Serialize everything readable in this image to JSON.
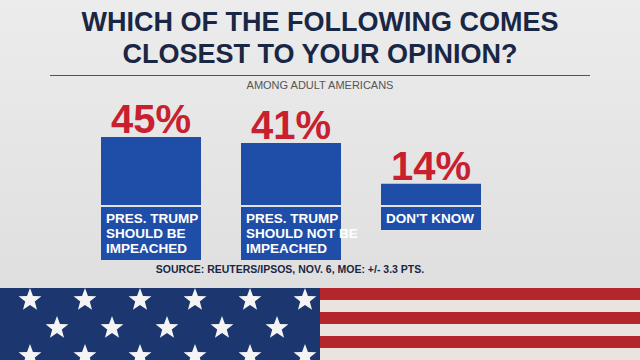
{
  "chart_data": {
    "type": "bar",
    "title": "WHICH OF THE FOLLOWING COMES CLOSEST TO YOUR OPINION?",
    "subtitle": "AMONG ADULT AMERICANS",
    "source": "SOURCE: REUTERS/IPSOS, NOV. 6, MOE: +/- 3.3 PTS.",
    "categories": [
      "PRES. TRUMP SHOULD BE IMPEACHED",
      "PRES. TRUMP SHOULD NOT BE IMPEACHED",
      "DON'T KNOW"
    ],
    "values": [
      45,
      41,
      14
    ],
    "value_labels": [
      "45%",
      "41%",
      "14%"
    ],
    "color": "#1f4ea8",
    "data_labels": true,
    "tick_labels": "x",
    "grid": false
  }
}
